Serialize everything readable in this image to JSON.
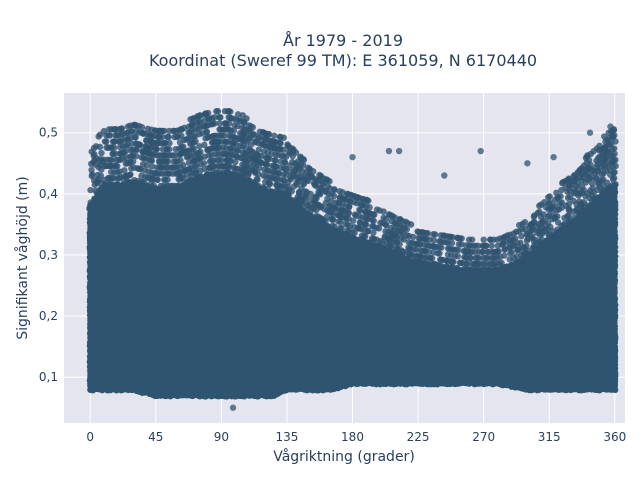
{
  "chart_data": {
    "type": "scatter",
    "title_lines": [
      "År 1979 - 2019",
      "Koordinat (Sweref 99 TM): E 361059, N 6170440"
    ],
    "xlabel": "Vågriktning (grader)",
    "ylabel": "Signifikant våghöjd (m)",
    "xlim": [
      -18,
      367
    ],
    "ylim": [
      0.025,
      0.565
    ],
    "x_ticks": [
      0,
      45,
      90,
      135,
      180,
      225,
      270,
      315,
      360
    ],
    "x_tick_labels": [
      "0",
      "45",
      "90",
      "135",
      "180",
      "225",
      "270",
      "315",
      "360"
    ],
    "y_ticks": [
      0.1,
      0.2,
      0.3,
      0.4,
      0.5
    ],
    "y_tick_labels": [
      "0,1",
      "0,2",
      "0,3",
      "0,4",
      "0,5"
    ],
    "grid": true,
    "marker_color": "#2f5470",
    "plot_background": "#e5e5f0",
    "envelope": {
      "x": [
        0,
        10,
        20,
        30,
        45,
        60,
        75,
        85,
        95,
        105,
        115,
        125,
        135,
        145,
        155,
        165,
        180,
        200,
        220,
        240,
        260,
        280,
        300,
        315,
        330,
        340,
        350,
        360
      ],
      "y_max": [
        0.47,
        0.51,
        0.51,
        0.52,
        0.51,
        0.51,
        0.53,
        0.54,
        0.54,
        0.53,
        0.51,
        0.5,
        0.49,
        0.46,
        0.44,
        0.42,
        0.4,
        0.38,
        0.35,
        0.34,
        0.33,
        0.33,
        0.36,
        0.4,
        0.43,
        0.46,
        0.49,
        0.51
      ],
      "y_min": [
        0.07,
        0.07,
        0.07,
        0.07,
        0.06,
        0.06,
        0.06,
        0.06,
        0.06,
        0.06,
        0.06,
        0.06,
        0.07,
        0.07,
        0.07,
        0.07,
        0.08,
        0.08,
        0.08,
        0.08,
        0.08,
        0.08,
        0.07,
        0.07,
        0.07,
        0.07,
        0.07,
        0.07
      ]
    },
    "outliers": [
      {
        "x": 98,
        "y": 0.05
      },
      {
        "x": 180,
        "y": 0.46
      },
      {
        "x": 205,
        "y": 0.47
      },
      {
        "x": 212,
        "y": 0.47
      },
      {
        "x": 243,
        "y": 0.43
      },
      {
        "x": 268,
        "y": 0.47
      },
      {
        "x": 300,
        "y": 0.45
      },
      {
        "x": 318,
        "y": 0.46
      },
      {
        "x": 343,
        "y": 0.5
      },
      {
        "x": 357,
        "y": 0.51
      }
    ]
  }
}
